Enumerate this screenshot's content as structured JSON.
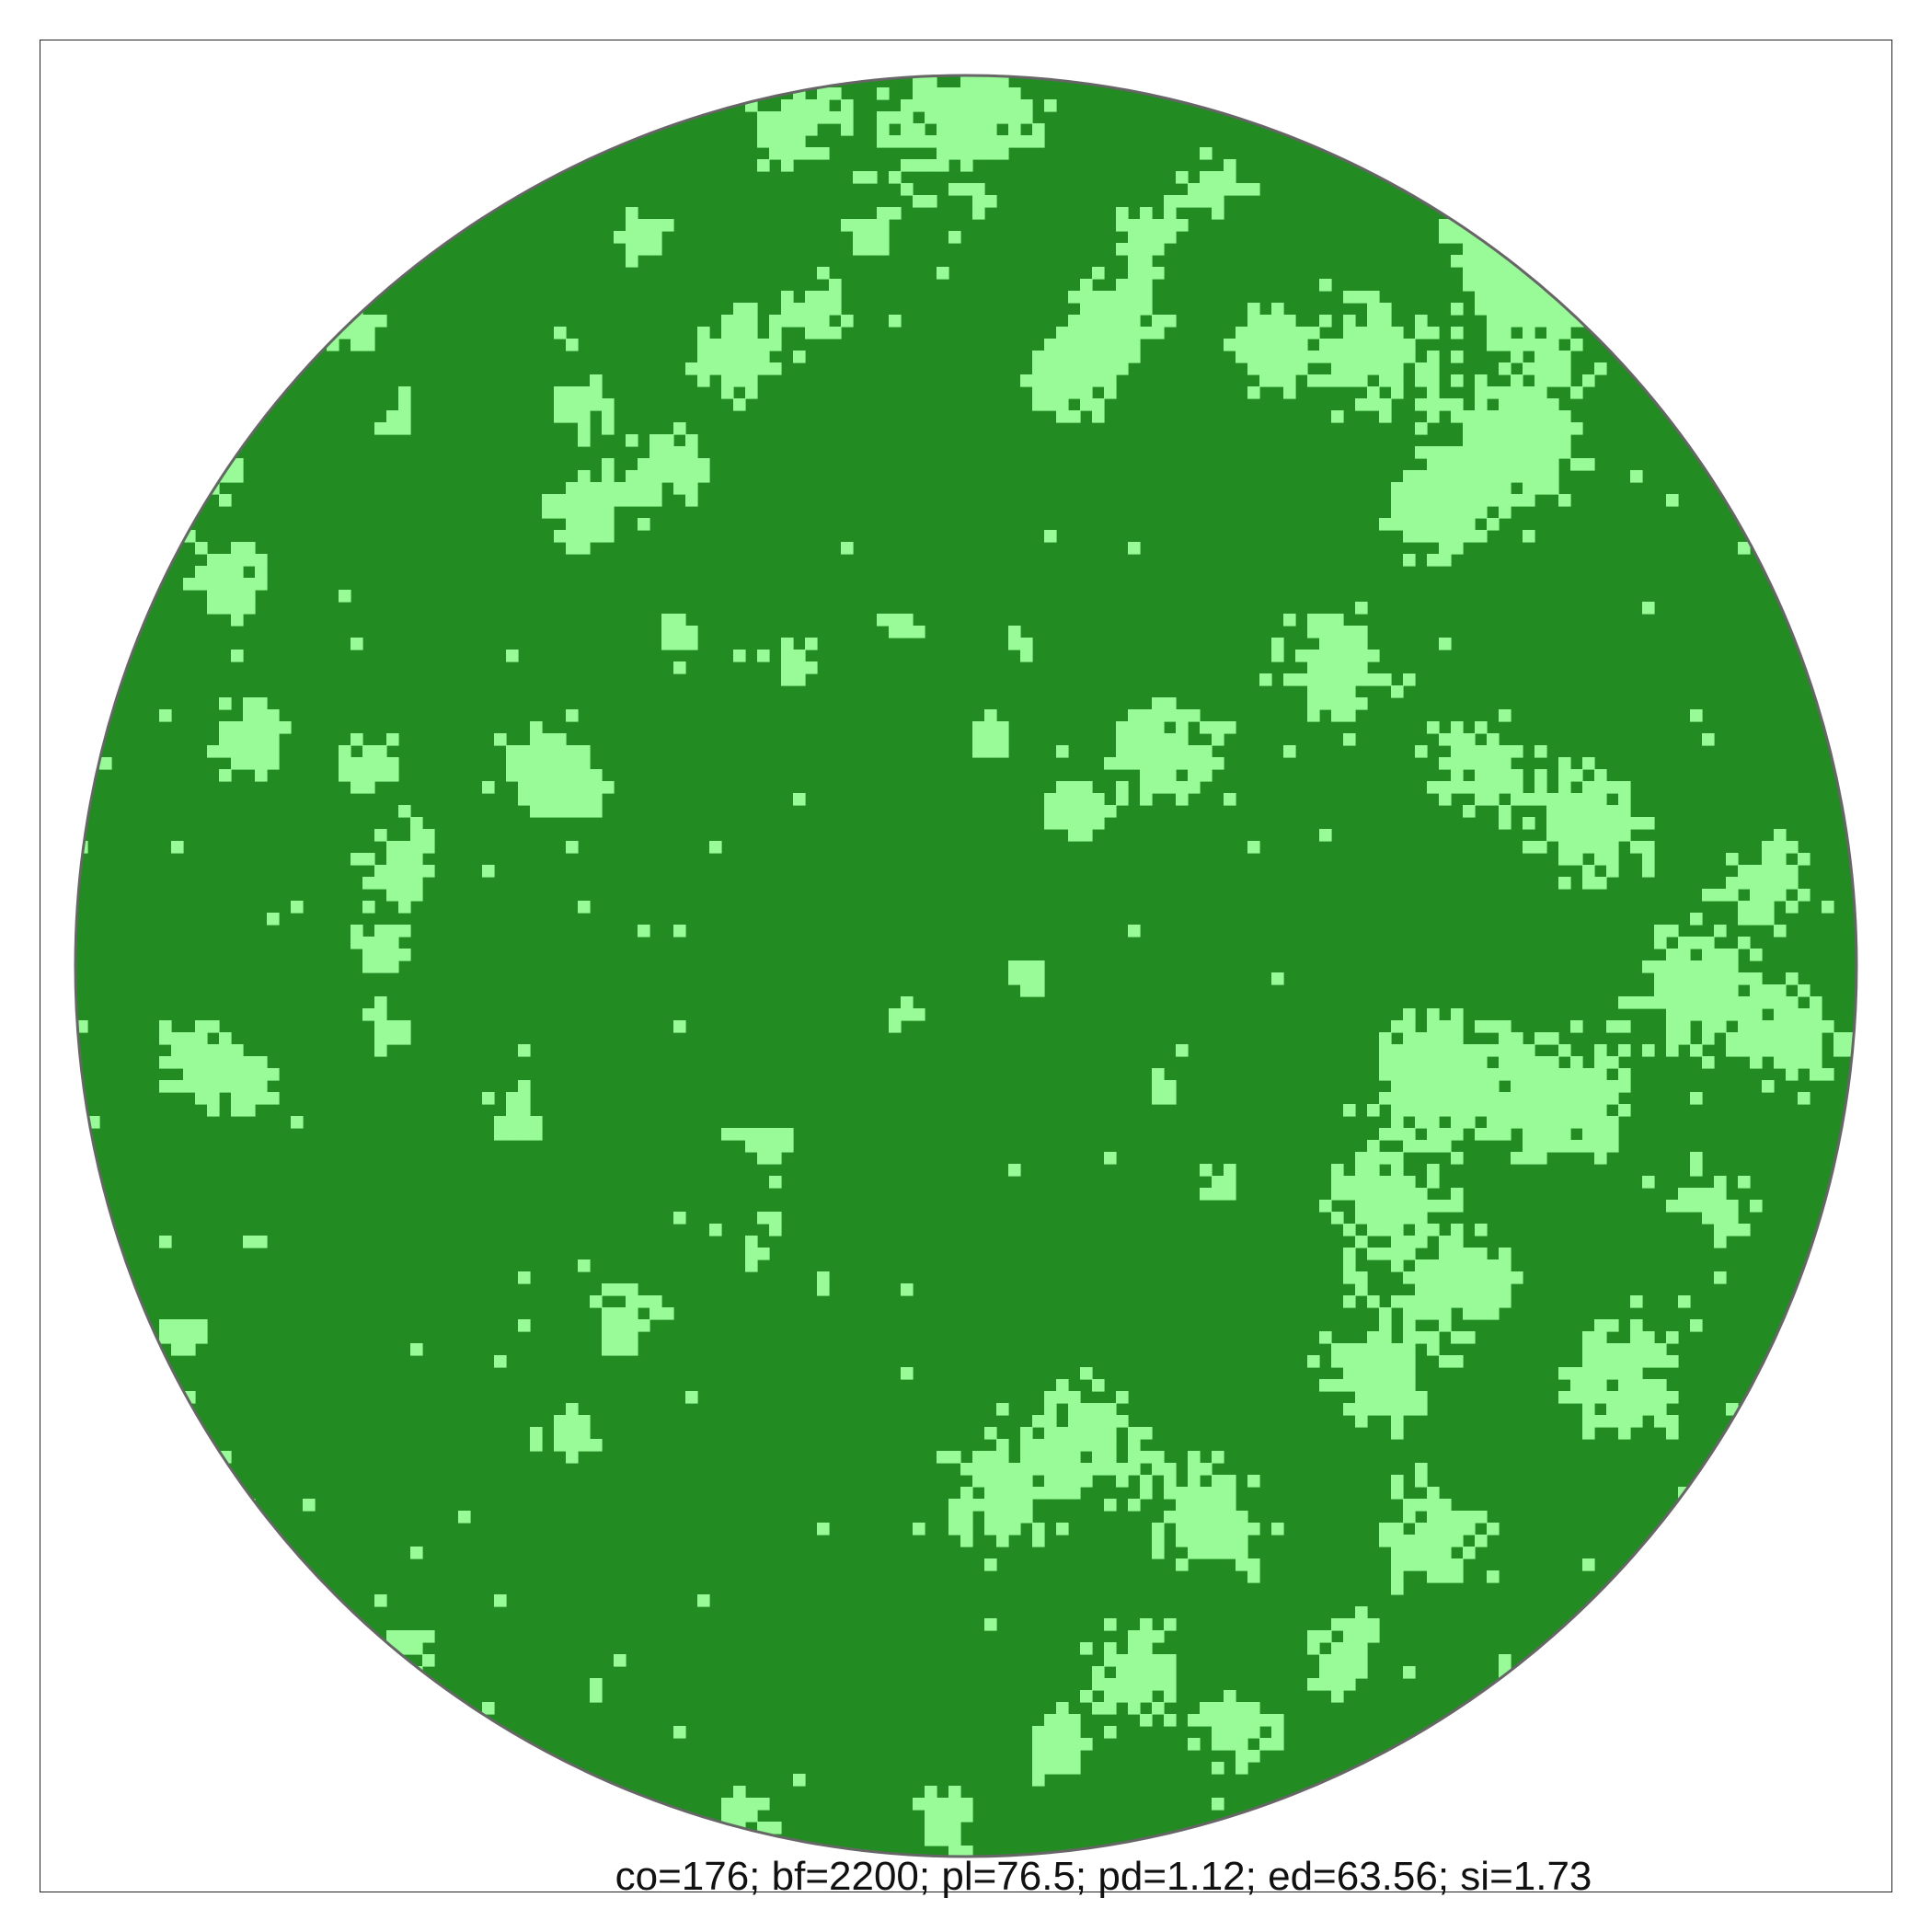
{
  "map": {
    "colors": {
      "forest": "#228b22",
      "clearing": "#98fb98",
      "boundary": "#666666",
      "background": "#ffffff",
      "frame": "#222222"
    },
    "legend": []
  },
  "metrics": {
    "caption": "co=176; bf=2200; pl=76.5; pd=1.12; ed=63.56; si=1.73"
  }
}
